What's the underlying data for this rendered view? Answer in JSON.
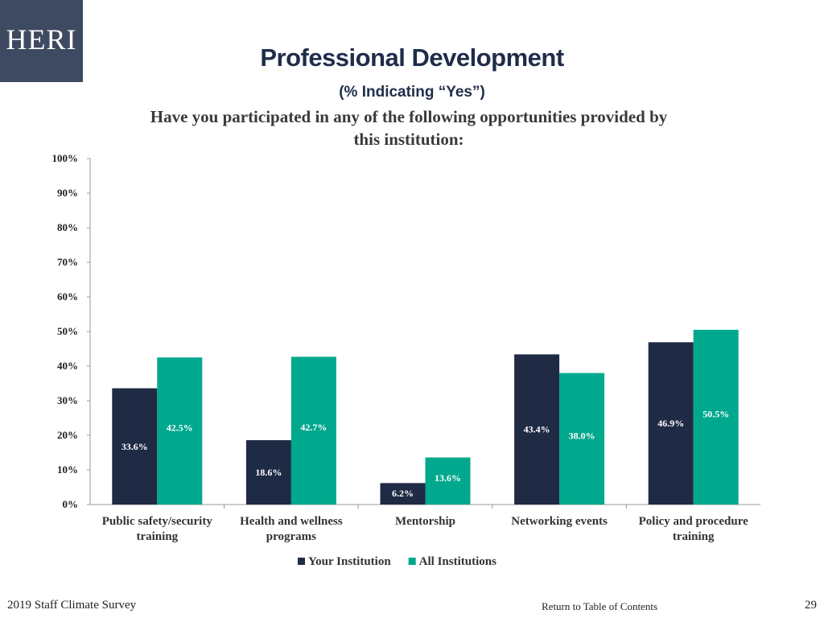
{
  "logo": {
    "text": "HERI"
  },
  "header": {
    "title": "Professional Development",
    "subtitle": "(% Indicating “Yes”)",
    "question": "Have you participated in any of the following opportunities provided by this institution:"
  },
  "footer": {
    "survey": "2019 Staff Climate Survey",
    "toc_link": "Return to Table of Contents",
    "page_number": "29"
  },
  "colors": {
    "your_institution": "#1f2a44",
    "all_institutions": "#00a88e",
    "logo_bg": "#3e4a61",
    "title": "#1f2d4a"
  },
  "chart_data": {
    "type": "bar",
    "categories": [
      [
        "Public safety/security",
        "training"
      ],
      [
        "Health and wellness",
        "programs"
      ],
      [
        "Mentorship"
      ],
      [
        "Networking events"
      ],
      [
        "Policy and procedure",
        "training"
      ]
    ],
    "series": [
      {
        "name": "Your Institution",
        "values": [
          33.6,
          18.6,
          6.2,
          43.4,
          46.9
        ],
        "labels": [
          "33.6%",
          "18.6%",
          "6.2%",
          "43.4%",
          "46.9%"
        ]
      },
      {
        "name": "All Institutions",
        "values": [
          42.5,
          42.7,
          13.6,
          38.0,
          50.5
        ],
        "labels": [
          "42.5%",
          "42.7%",
          "13.6%",
          "38.0%",
          "50.5%"
        ]
      }
    ],
    "y_ticks": [
      "0%",
      "10%",
      "20%",
      "30%",
      "40%",
      "50%",
      "60%",
      "70%",
      "80%",
      "90%",
      "100%"
    ],
    "ylim": [
      0,
      100
    ],
    "grid": false,
    "legend_position": "bottom"
  }
}
